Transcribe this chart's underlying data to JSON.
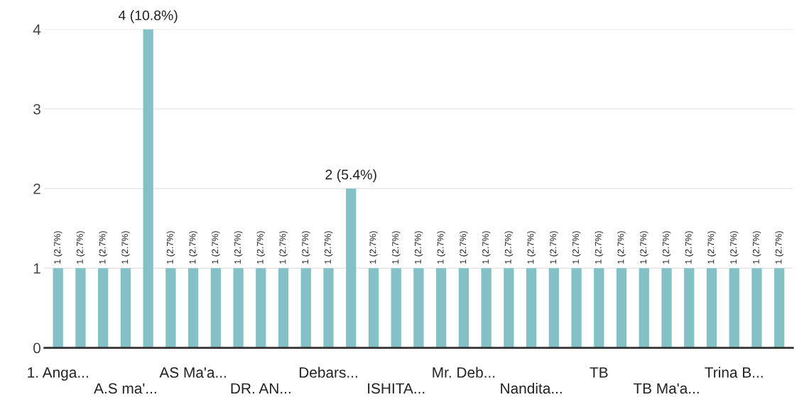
{
  "chart_data": {
    "type": "bar",
    "categories": [
      "1. Anga...",
      null,
      null,
      "A.S ma'...",
      null,
      null,
      "AS Ma'a...",
      null,
      null,
      "DR. AN...",
      null,
      null,
      "Debars...",
      null,
      null,
      "ISHITA...",
      null,
      null,
      "Mr. Deb...",
      null,
      null,
      "Nandita...",
      null,
      null,
      "TB",
      null,
      null,
      "TB Ma'a...",
      null,
      null,
      "Trina B...",
      null,
      null
    ],
    "values": [
      1,
      1,
      1,
      1,
      4,
      1,
      1,
      1,
      1,
      1,
      1,
      1,
      1,
      2,
      1,
      1,
      1,
      1,
      1,
      1,
      1,
      1,
      1,
      1,
      1,
      1,
      1,
      1,
      1,
      1,
      1,
      1,
      1
    ],
    "value_labels": [
      "1 (2.7%)",
      "1 (2.7%)",
      "1 (2.7%)",
      "1 (2.7%)",
      "4 (10.8%)",
      "1 (2.7%)",
      "1 (2.7%)",
      "1 (2.7%)",
      "1 (2.7%)",
      "1 (2.7%)",
      "1 (2.7%)",
      "1 (2.7%)",
      "1 (2.7%)",
      "2 (5.4%)",
      "1 (2.7%)",
      "1 (2.7%)",
      "1 (2.7%)",
      "1 (2.7%)",
      "1 (2.7%)",
      "1 (2.7%)",
      "1 (2.7%)",
      "1 (2.7%)",
      "1 (2.7%)",
      "1 (2.7%)",
      "1 (2.7%)",
      "1 (2.7%)",
      "1 (2.7%)",
      "1 (2.7%)",
      "1 (2.7%)",
      "1 (2.7%)",
      "1 (2.7%)",
      "1 (2.7%)",
      "1 (2.7%)"
    ],
    "color": "#84c1c6",
    "ylim": [
      0,
      4
    ],
    "yticks": [
      0,
      1,
      2,
      3,
      4
    ],
    "grid": "y"
  }
}
